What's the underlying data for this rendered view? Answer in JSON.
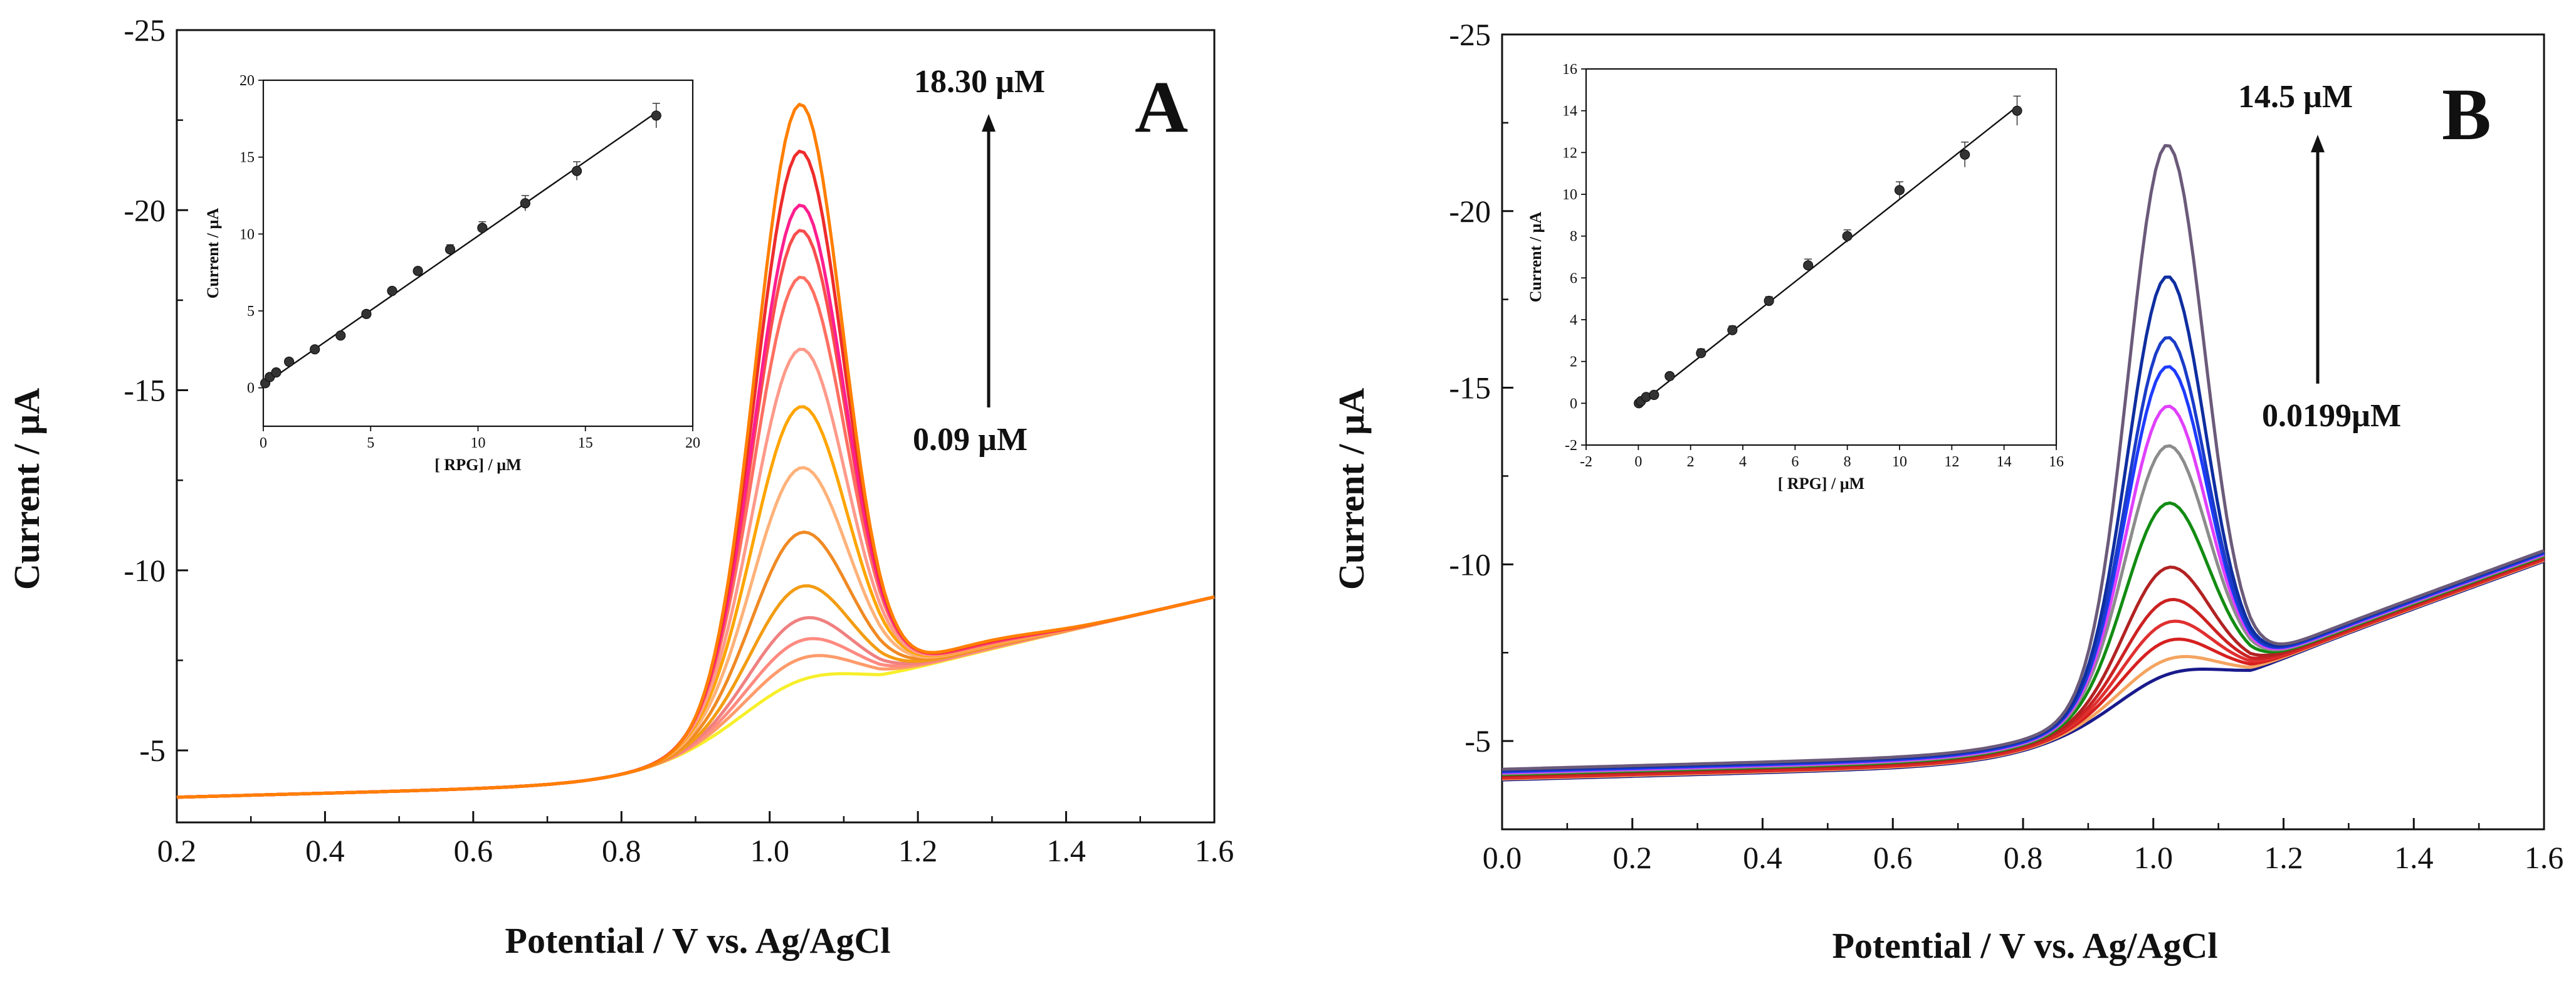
{
  "figure": {
    "panels": [
      "A",
      "B"
    ]
  },
  "chart_data": [
    {
      "type": "line",
      "panel_label": "A",
      "xlabel": "Potential / V vs. Ag/AgCl",
      "ylabel": "Current / µA",
      "xlim": [
        0.2,
        1.6
      ],
      "ylim": [
        -3,
        -25
      ],
      "xticks": [
        0.2,
        0.4,
        0.6,
        0.8,
        1.0,
        1.2,
        1.4,
        1.6
      ],
      "xtick_labels": [
        "0.2",
        "0.4",
        "0.6",
        "0.8",
        "1.0",
        "1.2",
        "1.4",
        "1.6"
      ],
      "yticks": [
        -5,
        -10,
        -15,
        -20,
        -25
      ],
      "ytick_labels": [
        "-5",
        "-10",
        "-15",
        "-20",
        "-25"
      ],
      "annotation_top": "18.30  µM",
      "annotation_bottom": "0.09  µM",
      "peak_potential": 1.04,
      "series": [
        {
          "concentration": 0.09,
          "peak": -8.1,
          "color": "#f7ef2a"
        },
        {
          "concentration": 0.3,
          "peak": -8.7,
          "color": "#ff9b6b"
        },
        {
          "concentration": 0.6,
          "peak": -9.2,
          "color": "#ff8a80"
        },
        {
          "concentration": 1.2,
          "peak": -9.8,
          "color": "#f08080"
        },
        {
          "concentration": 2.4,
          "peak": -10.7,
          "color": "#f39c12"
        },
        {
          "concentration": 3.6,
          "peak": -12.2,
          "color": "#f08a24"
        },
        {
          "concentration": 4.8,
          "peak": -14.0,
          "color": "#ffb27a"
        },
        {
          "concentration": 6.0,
          "peak": -15.7,
          "color": "#ffa500"
        },
        {
          "concentration": 7.2,
          "peak": -17.3,
          "color": "#ff9a8a"
        },
        {
          "concentration": 8.7,
          "peak": -19.3,
          "color": "#ff6f61"
        },
        {
          "concentration": 10.2,
          "peak": -20.6,
          "color": "#f94d4d"
        },
        {
          "concentration": 12.2,
          "peak": -21.3,
          "color": "#ff1f8f"
        },
        {
          "concentration": 14.6,
          "peak": -22.8,
          "color": "#ee2c2c"
        },
        {
          "concentration": 18.3,
          "peak": -24.1,
          "color": "#ff7f00"
        }
      ],
      "inset": {
        "type": "scatter",
        "xlabel": "[ RPG] / µM",
        "ylabel": "Current / µA",
        "xlim": [
          0,
          20
        ],
        "ylim": [
          -2.5,
          20
        ],
        "xticks": [
          0,
          5,
          10,
          15,
          20
        ],
        "yticks": [
          0,
          5,
          10,
          15,
          20
        ],
        "x": [
          0.09,
          0.3,
          0.6,
          1.2,
          2.4,
          3.6,
          4.8,
          6.0,
          7.2,
          8.7,
          10.2,
          12.2,
          14.6,
          18.3
        ],
        "y": [
          0.3,
          0.7,
          1.0,
          1.7,
          2.5,
          3.4,
          4.8,
          6.3,
          7.6,
          9.0,
          10.4,
          12.0,
          14.1,
          17.7
        ],
        "error": [
          0.2,
          0.2,
          0.2,
          0.2,
          0.2,
          0.2,
          0.2,
          0.2,
          0.2,
          0.3,
          0.4,
          0.5,
          0.6,
          0.8
        ],
        "fit": {
          "x": [
            0,
            18.3
          ],
          "y": [
            0.2,
            17.9
          ]
        }
      }
    },
    {
      "type": "line",
      "panel_label": "B",
      "xlabel": "Potential / V vs. Ag/AgCl",
      "ylabel": "Current / µA",
      "xlim": [
        0.0,
        1.6
      ],
      "ylim": [
        -2.5,
        -25
      ],
      "xticks": [
        0.0,
        0.2,
        0.4,
        0.6,
        0.8,
        1.0,
        1.2,
        1.4,
        1.6
      ],
      "xtick_labels": [
        "0.0",
        "0.2",
        "0.4",
        "0.6",
        "0.8",
        "1.0",
        "1.2",
        "1.4",
        "1.6"
      ],
      "yticks": [
        -5,
        -10,
        -15,
        -20,
        -25
      ],
      "ytick_labels": [
        "-5",
        "-10",
        "-15",
        "-20",
        "-25"
      ],
      "annotation_top": "14.5 µM",
      "annotation_bottom": "0.0199µM",
      "peak_potential": 1.02,
      "series": [
        {
          "concentration": 0.0199,
          "peak": -8.0,
          "color": "#1a1a8c"
        },
        {
          "concentration": 0.1,
          "peak": -8.4,
          "color": "#f4a460"
        },
        {
          "concentration": 0.3,
          "peak": -8.9,
          "color": "#d62020"
        },
        {
          "concentration": 0.6,
          "peak": -9.4,
          "color": "#e03030"
        },
        {
          "concentration": 1.2,
          "peak": -10.0,
          "color": "#cc2222"
        },
        {
          "concentration": 2.4,
          "peak": -10.9,
          "color": "#b22222"
        },
        {
          "concentration": 3.6,
          "peak": -12.7,
          "color": "#128c12"
        },
        {
          "concentration": 5.0,
          "peak": -14.3,
          "color": "#8c8c8c"
        },
        {
          "concentration": 6.5,
          "peak": -15.4,
          "color": "#e040fb"
        },
        {
          "concentration": 8.0,
          "peak": -16.5,
          "color": "#1e3cff"
        },
        {
          "concentration": 10.0,
          "peak": -17.3,
          "color": "#1a3cc8"
        },
        {
          "concentration": 12.5,
          "peak": -19.0,
          "color": "#0f2ea0"
        },
        {
          "concentration": 14.5,
          "peak": -22.7,
          "color": "#6b5a7a"
        }
      ],
      "inset": {
        "type": "scatter",
        "xlabel": "[ RPG] / µM",
        "ylabel": "Current / µA",
        "xlim": [
          -2,
          16
        ],
        "ylim": [
          -2,
          16
        ],
        "xticks": [
          -2,
          0,
          2,
          4,
          6,
          8,
          10,
          12,
          14,
          16
        ],
        "yticks": [
          -2,
          0,
          2,
          4,
          6,
          8,
          10,
          12,
          14,
          16
        ],
        "x": [
          0.0199,
          0.1,
          0.3,
          0.6,
          1.2,
          2.4,
          3.6,
          5.0,
          6.5,
          8.0,
          10.0,
          12.5,
          14.5
        ],
        "y": [
          0.0,
          0.1,
          0.3,
          0.4,
          1.3,
          2.4,
          3.5,
          4.9,
          6.6,
          8.0,
          10.2,
          11.9,
          14.0
        ],
        "error": [
          0.1,
          0.1,
          0.1,
          0.1,
          0.1,
          0.2,
          0.2,
          0.2,
          0.3,
          0.3,
          0.4,
          0.6,
          0.7
        ],
        "fit": {
          "x": [
            0,
            14.5
          ],
          "y": [
            -0.1,
            14.2
          ]
        }
      }
    }
  ]
}
